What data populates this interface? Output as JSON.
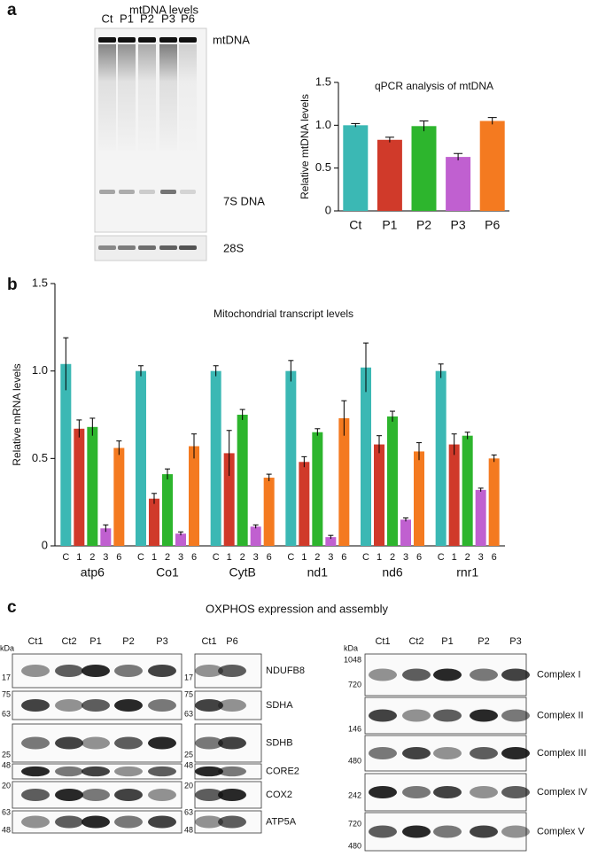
{
  "panel_labels": [
    "a",
    "b",
    "c"
  ],
  "mtdna_blot": {
    "title": "mtDNA levels",
    "lanes": [
      "Ct",
      "P1",
      "P2",
      "P3",
      "P6"
    ],
    "bands": [
      "mtDNA",
      "7S DNA",
      "28S"
    ]
  },
  "chart_data": [
    {
      "type": "bar",
      "title": "qPCR analysis of mtDNA",
      "y_label": "Relative mtDNA levels",
      "categories": [
        "Ct",
        "P1",
        "P2",
        "P3",
        "P6"
      ],
      "values": [
        1.0,
        0.83,
        0.99,
        0.63,
        1.05
      ],
      "errors": [
        0.02,
        0.03,
        0.06,
        0.04,
        0.04
      ],
      "colors": [
        "#3bb8b4",
        "#d03a2a",
        "#2db52d",
        "#c060d0",
        "#f47a20"
      ],
      "ylim": [
        0,
        1.5
      ],
      "yticks": [
        0,
        0.5,
        {
          "value": 1,
          "label": "1.0"
        },
        1.5
      ]
    },
    {
      "type": "grouped_bar",
      "title": "Mitochondrial transcript levels",
      "y_label": "Relative mRNA levels",
      "categories": [
        "atp6",
        "Co1",
        "CytB",
        "nd1",
        "nd6",
        "rnr1"
      ],
      "series": [
        {
          "name": "C",
          "color": "#3bb8b4",
          "values": [
            1.04,
            1.0,
            1.0,
            1.0,
            1.02,
            1.0
          ],
          "errors": [
            0.15,
            0.03,
            0.03,
            0.06,
            0.14,
            0.04
          ]
        },
        {
          "name": "1",
          "color": "#d03a2a",
          "values": [
            0.67,
            0.27,
            0.53,
            0.48,
            0.58,
            0.58
          ],
          "errors": [
            0.05,
            0.03,
            0.13,
            0.03,
            0.05,
            0.06
          ]
        },
        {
          "name": "2",
          "color": "#2db52d",
          "values": [
            0.68,
            0.41,
            0.75,
            0.65,
            0.74,
            0.63
          ],
          "errors": [
            0.05,
            0.03,
            0.03,
            0.02,
            0.03,
            0.02
          ]
        },
        {
          "name": "3",
          "color": "#c060d0",
          "values": [
            0.1,
            0.07,
            0.11,
            0.05,
            0.15,
            0.32
          ],
          "errors": [
            0.02,
            0.01,
            0.01,
            0.01,
            0.01,
            0.01
          ]
        },
        {
          "name": "6",
          "color": "#f47a20",
          "values": [
            0.56,
            0.57,
            0.39,
            0.73,
            0.54,
            0.5
          ],
          "errors": [
            0.04,
            0.07,
            0.02,
            0.1,
            0.05,
            0.02
          ]
        }
      ],
      "ylim": [
        0,
        1.5
      ],
      "yticks": [
        0,
        0.5,
        {
          "value": 1,
          "label": "1.0"
        },
        1.5
      ]
    }
  ],
  "oxphos": {
    "title": "OXPHOS expression and assembly",
    "unit": "kDa",
    "lanes": [
      "Ct1",
      "Ct2",
      "P1",
      "P2",
      "P3"
    ],
    "lanes_2": [
      "Ct1",
      "P6"
    ],
    "rows": [
      {
        "label": "NDUFB8",
        "markers": [
          17
        ],
        "markers_2": [
          17
        ]
      },
      {
        "label": "SDHA",
        "markers": [
          75,
          63
        ],
        "markers_2": [
          75,
          63
        ]
      },
      {
        "label": "SDHB",
        "markers": [
          25
        ],
        "markers_2": [
          25
        ]
      },
      {
        "label": "CORE2",
        "markers": [
          48
        ],
        "markers_2": [
          48
        ]
      },
      {
        "label": "COX2",
        "markers": [
          20
        ],
        "markers_2": [
          20
        ]
      },
      {
        "label": "ATP5A",
        "markers": [
          63,
          48
        ],
        "markers_2": [
          63,
          48
        ]
      }
    ],
    "native_lanes": [
      "Ct1",
      "Ct2",
      "P1",
      "P2",
      "P3"
    ],
    "native_rows": [
      {
        "label": "Complex I",
        "markers": [
          1048,
          720
        ]
      },
      {
        "label": "Complex II",
        "markers": [
          146
        ]
      },
      {
        "label": "Complex III",
        "markers": [
          480
        ]
      },
      {
        "label": "Complex IV",
        "markers": [
          242
        ]
      },
      {
        "label": "Complex V",
        "markers": [
          720,
          480
        ]
      }
    ]
  }
}
